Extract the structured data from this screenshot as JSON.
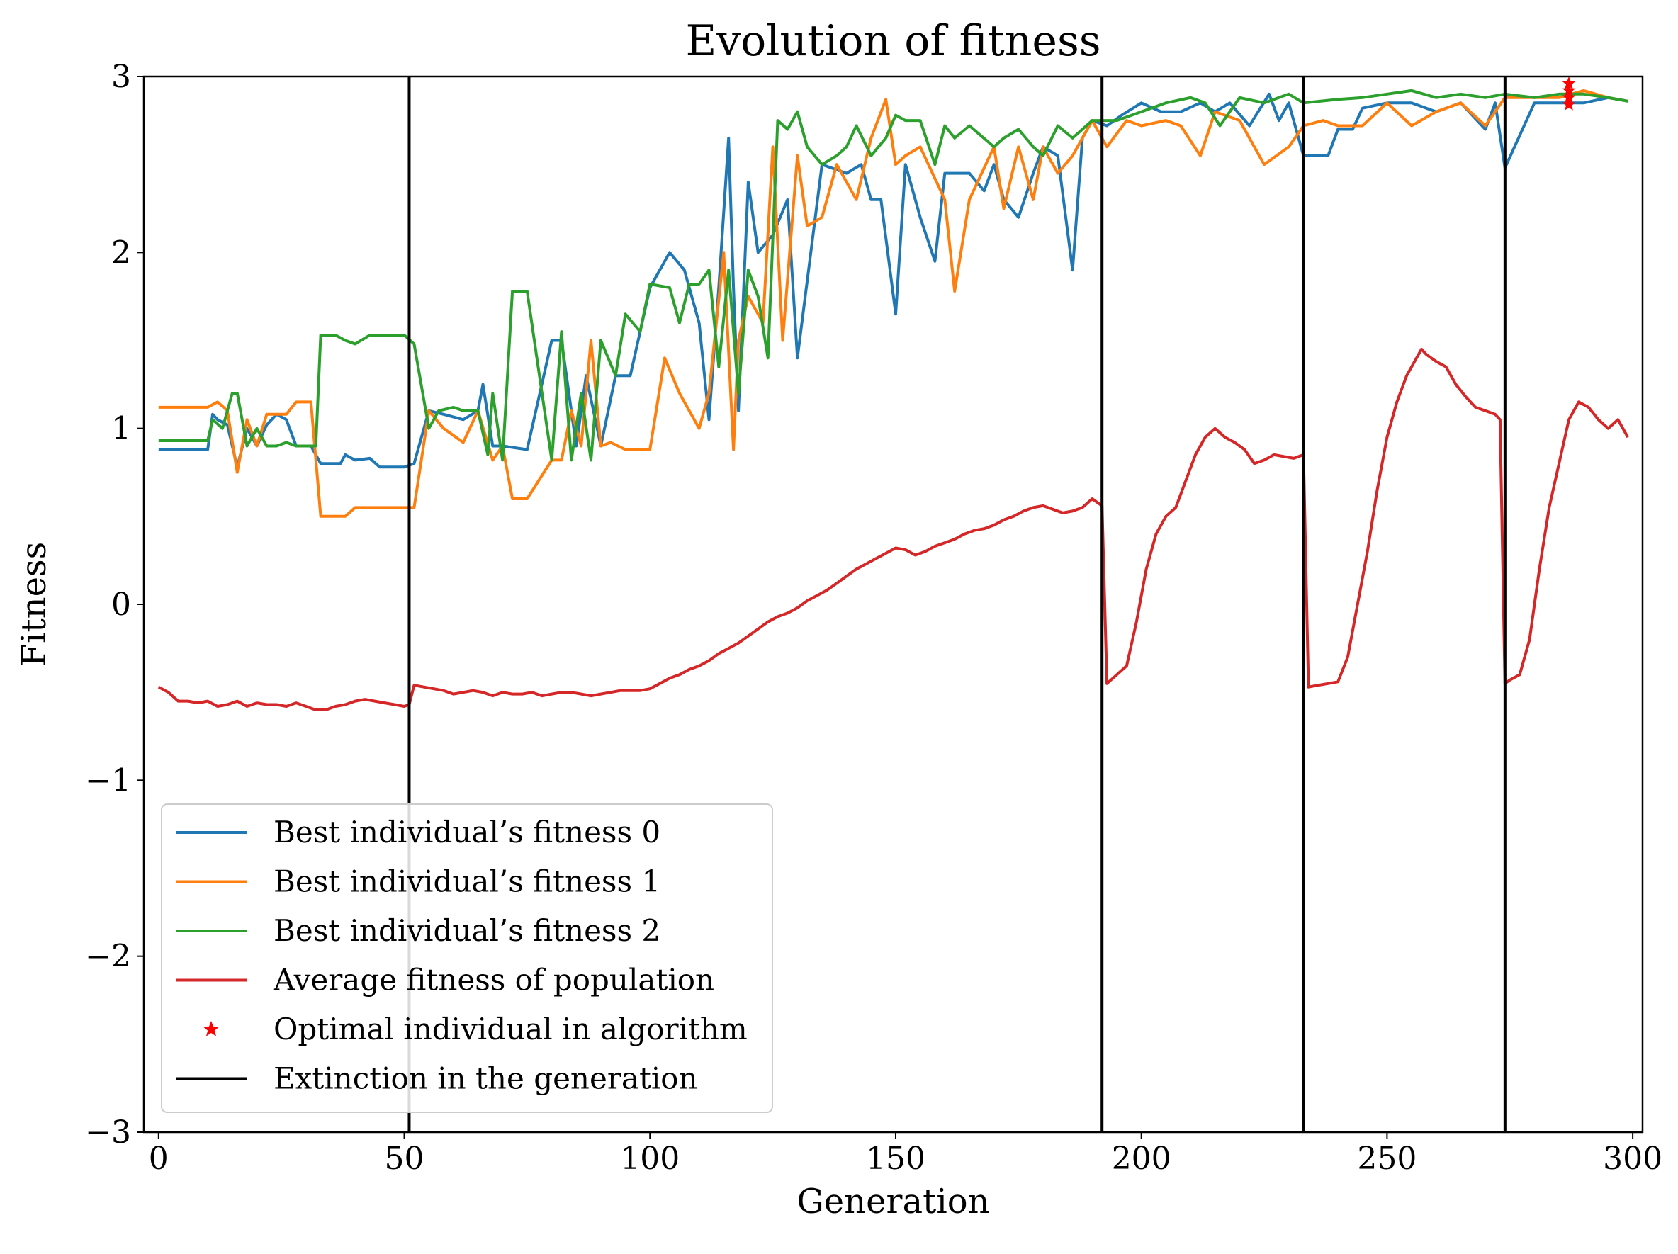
{
  "chart_data": {
    "type": "line",
    "title": "Evolution of fitness",
    "xlabel": "Generation",
    "ylabel": "Fitness",
    "xlim": [
      -3,
      302
    ],
    "ylim": [
      -3,
      3
    ],
    "xticks": [
      0,
      50,
      100,
      150,
      200,
      250,
      300
    ],
    "yticks": [
      -3,
      -2,
      -1,
      0,
      1,
      2,
      3
    ],
    "ytick_labels": [
      "−3",
      "−2",
      "−1",
      "0",
      "1",
      "2",
      "3"
    ],
    "grid": false,
    "legend_position": "lower-left",
    "extinction_generations": [
      51,
      192,
      233,
      274
    ],
    "series": [
      {
        "name": "Best individual’s fitness 0",
        "color": "#1f77b4",
        "x": [
          0,
          10,
          11,
          12,
          14,
          16,
          18,
          20,
          22,
          24,
          26,
          28,
          31,
          33,
          37,
          38,
          40,
          43,
          45,
          50,
          52,
          55,
          58,
          62,
          65,
          66,
          68,
          70,
          75,
          80,
          82,
          85,
          87,
          90,
          93,
          96,
          100,
          104,
          107,
          110,
          112,
          114,
          116,
          117,
          118,
          120,
          122,
          125,
          128,
          130,
          135,
          140,
          143,
          145,
          147,
          150,
          152,
          155,
          158,
          160,
          165,
          168,
          170,
          172,
          175,
          178,
          180,
          183,
          186,
          188,
          190,
          193,
          196,
          200,
          204,
          208,
          212,
          215,
          218,
          222,
          226,
          228,
          230,
          233,
          238,
          240,
          243,
          245,
          250,
          255,
          260,
          265,
          270,
          272,
          274,
          280,
          285,
          290,
          295,
          299
        ],
        "y": [
          0.88,
          0.88,
          1.08,
          1.05,
          1.02,
          0.78,
          1.0,
          0.9,
          1.02,
          1.08,
          1.05,
          0.9,
          0.9,
          0.8,
          0.8,
          0.85,
          0.82,
          0.83,
          0.78,
          0.78,
          0.8,
          1.1,
          1.08,
          1.05,
          1.1,
          1.25,
          0.9,
          0.9,
          0.88,
          1.5,
          1.5,
          0.9,
          1.3,
          0.9,
          1.3,
          1.3,
          1.8,
          2.0,
          1.9,
          1.6,
          1.05,
          1.8,
          2.65,
          1.8,
          1.1,
          2.4,
          2.0,
          2.1,
          2.3,
          1.4,
          2.5,
          2.45,
          2.5,
          2.3,
          2.3,
          1.65,
          2.5,
          2.2,
          1.95,
          2.45,
          2.45,
          2.35,
          2.5,
          2.3,
          2.2,
          2.45,
          2.6,
          2.55,
          1.9,
          2.65,
          2.75,
          2.72,
          2.78,
          2.85,
          2.8,
          2.8,
          2.85,
          2.8,
          2.85,
          2.72,
          2.9,
          2.75,
          2.85,
          2.55,
          2.55,
          2.7,
          2.7,
          2.82,
          2.85,
          2.85,
          2.8,
          2.85,
          2.7,
          2.85,
          2.48,
          2.85,
          2.85,
          2.85,
          2.88,
          2.86
        ]
      },
      {
        "name": "Best individual’s fitness 1",
        "color": "#ff7f0e",
        "x": [
          0,
          10,
          12,
          14,
          16,
          18,
          20,
          22,
          24,
          26,
          28,
          31,
          33,
          35,
          38,
          40,
          43,
          45,
          50,
          52,
          55,
          58,
          62,
          65,
          68,
          70,
          72,
          75,
          80,
          82,
          84,
          86,
          88,
          90,
          92,
          95,
          100,
          103,
          106,
          110,
          112,
          115,
          117,
          118,
          120,
          123,
          125,
          127,
          130,
          132,
          135,
          138,
          142,
          145,
          148,
          150,
          152,
          155,
          160,
          162,
          165,
          170,
          172,
          175,
          178,
          180,
          183,
          186,
          190,
          193,
          197,
          200,
          205,
          208,
          212,
          215,
          220,
          225,
          230,
          233,
          237,
          240,
          245,
          250,
          255,
          260,
          265,
          270,
          274,
          280,
          285,
          290,
          295,
          299
        ],
        "y": [
          1.12,
          1.12,
          1.15,
          1.1,
          0.75,
          1.05,
          0.9,
          1.08,
          1.08,
          1.08,
          1.15,
          1.15,
          0.5,
          0.5,
          0.5,
          0.55,
          0.55,
          0.55,
          0.55,
          0.55,
          1.1,
          1.0,
          0.92,
          1.1,
          0.82,
          0.9,
          0.6,
          0.6,
          0.82,
          0.82,
          1.1,
          0.9,
          1.5,
          0.9,
          0.92,
          0.88,
          0.88,
          1.4,
          1.2,
          1.0,
          1.2,
          2.0,
          0.88,
          1.5,
          1.75,
          1.6,
          2.6,
          1.5,
          2.55,
          2.15,
          2.2,
          2.5,
          2.3,
          2.65,
          2.87,
          2.5,
          2.55,
          2.6,
          2.3,
          1.78,
          2.3,
          2.6,
          2.25,
          2.6,
          2.3,
          2.6,
          2.45,
          2.55,
          2.75,
          2.6,
          2.75,
          2.72,
          2.75,
          2.72,
          2.55,
          2.8,
          2.75,
          2.5,
          2.6,
          2.72,
          2.75,
          2.72,
          2.72,
          2.85,
          2.72,
          2.8,
          2.85,
          2.72,
          2.88,
          2.88,
          2.88,
          2.92,
          2.88,
          2.86
        ]
      },
      {
        "name": "Best individual’s fitness 2",
        "color": "#2ca02c",
        "x": [
          0,
          10,
          11,
          13,
          15,
          16,
          17,
          18,
          20,
          22,
          24,
          26,
          28,
          32,
          33,
          36,
          38,
          40,
          43,
          45,
          50,
          52,
          55,
          57,
          60,
          62,
          65,
          67,
          68,
          70,
          72,
          75,
          80,
          82,
          84,
          86,
          88,
          90,
          93,
          95,
          98,
          100,
          104,
          106,
          108,
          110,
          112,
          114,
          116,
          118,
          120,
          122,
          124,
          126,
          128,
          130,
          132,
          135,
          138,
          140,
          142,
          145,
          148,
          150,
          152,
          155,
          158,
          160,
          162,
          165,
          170,
          172,
          175,
          178,
          180,
          183,
          186,
          190,
          195,
          200,
          205,
          210,
          213,
          216,
          220,
          225,
          230,
          233,
          240,
          245,
          250,
          255,
          260,
          265,
          270,
          274,
          280,
          285,
          290,
          295,
          299
        ],
        "y": [
          0.93,
          0.93,
          1.05,
          1.0,
          1.2,
          1.2,
          1.05,
          0.9,
          1.0,
          0.9,
          0.9,
          0.92,
          0.9,
          0.9,
          1.53,
          1.53,
          1.5,
          1.48,
          1.53,
          1.53,
          1.53,
          1.48,
          1.0,
          1.1,
          1.12,
          1.1,
          1.1,
          0.85,
          1.2,
          0.82,
          1.78,
          1.78,
          0.82,
          1.55,
          0.82,
          1.2,
          0.82,
          1.5,
          1.3,
          1.65,
          1.55,
          1.82,
          1.8,
          1.6,
          1.82,
          1.82,
          1.9,
          1.35,
          1.9,
          1.2,
          1.9,
          1.75,
          1.4,
          2.75,
          2.7,
          2.8,
          2.6,
          2.5,
          2.55,
          2.6,
          2.72,
          2.55,
          2.65,
          2.78,
          2.75,
          2.75,
          2.5,
          2.72,
          2.65,
          2.72,
          2.6,
          2.65,
          2.7,
          2.6,
          2.55,
          2.72,
          2.65,
          2.75,
          2.75,
          2.8,
          2.85,
          2.88,
          2.85,
          2.72,
          2.88,
          2.85,
          2.9,
          2.85,
          2.87,
          2.88,
          2.9,
          2.92,
          2.88,
          2.9,
          2.88,
          2.9,
          2.88,
          2.9,
          2.9,
          2.88,
          2.86
        ]
      },
      {
        "name": "Average fitness of population",
        "color": "#d62728",
        "x": [
          0,
          2,
          4,
          6,
          8,
          10,
          12,
          14,
          16,
          18,
          20,
          22,
          24,
          26,
          28,
          30,
          32,
          34,
          36,
          38,
          40,
          42,
          44,
          46,
          48,
          50,
          51,
          52,
          54,
          56,
          58,
          60,
          62,
          64,
          66,
          68,
          70,
          72,
          74,
          76,
          78,
          80,
          82,
          84,
          86,
          88,
          90,
          92,
          94,
          96,
          98,
          100,
          102,
          104,
          106,
          108,
          110,
          112,
          114,
          116,
          118,
          120,
          122,
          124,
          126,
          128,
          130,
          132,
          134,
          136,
          138,
          140,
          142,
          144,
          146,
          148,
          150,
          152,
          154,
          156,
          158,
          160,
          162,
          164,
          166,
          168,
          170,
          172,
          174,
          176,
          178,
          180,
          182,
          184,
          186,
          188,
          190,
          191,
          192,
          193,
          195,
          197,
          199,
          201,
          203,
          205,
          207,
          209,
          211,
          213,
          215,
          217,
          219,
          221,
          223,
          225,
          227,
          229,
          231,
          232,
          233,
          234,
          236,
          238,
          240,
          242,
          244,
          246,
          248,
          250,
          252,
          254,
          256,
          257,
          258,
          260,
          262,
          264,
          266,
          268,
          270,
          272,
          273,
          274,
          275,
          277,
          279,
          281,
          283,
          285,
          287,
          289,
          291,
          293,
          295,
          297,
          299
        ],
        "y": [
          -0.47,
          -0.5,
          -0.55,
          -0.55,
          -0.56,
          -0.55,
          -0.58,
          -0.57,
          -0.55,
          -0.58,
          -0.56,
          -0.57,
          -0.57,
          -0.58,
          -0.56,
          -0.58,
          -0.6,
          -0.6,
          -0.58,
          -0.57,
          -0.55,
          -0.54,
          -0.55,
          -0.56,
          -0.57,
          -0.58,
          -0.57,
          -0.46,
          -0.47,
          -0.48,
          -0.49,
          -0.51,
          -0.5,
          -0.49,
          -0.5,
          -0.52,
          -0.5,
          -0.51,
          -0.51,
          -0.5,
          -0.52,
          -0.51,
          -0.5,
          -0.5,
          -0.51,
          -0.52,
          -0.51,
          -0.5,
          -0.49,
          -0.49,
          -0.49,
          -0.48,
          -0.45,
          -0.42,
          -0.4,
          -0.37,
          -0.35,
          -0.32,
          -0.28,
          -0.25,
          -0.22,
          -0.18,
          -0.14,
          -0.1,
          -0.07,
          -0.05,
          -0.02,
          0.02,
          0.05,
          0.08,
          0.12,
          0.16,
          0.2,
          0.23,
          0.26,
          0.29,
          0.32,
          0.31,
          0.28,
          0.3,
          0.33,
          0.35,
          0.37,
          0.4,
          0.42,
          0.43,
          0.45,
          0.48,
          0.5,
          0.53,
          0.55,
          0.56,
          0.54,
          0.52,
          0.53,
          0.55,
          0.6,
          0.58,
          0.56,
          -0.45,
          -0.4,
          -0.35,
          -0.1,
          0.2,
          0.4,
          0.5,
          0.55,
          0.7,
          0.85,
          0.95,
          1.0,
          0.95,
          0.92,
          0.88,
          0.8,
          0.82,
          0.85,
          0.84,
          0.83,
          0.84,
          0.85,
          -0.47,
          -0.46,
          -0.45,
          -0.44,
          -0.3,
          0.0,
          0.3,
          0.65,
          0.95,
          1.15,
          1.3,
          1.4,
          1.45,
          1.42,
          1.38,
          1.35,
          1.25,
          1.18,
          1.12,
          1.1,
          1.08,
          1.05,
          -0.45,
          -0.43,
          -0.4,
          -0.2,
          0.2,
          0.55,
          0.8,
          1.05,
          1.15,
          1.12,
          1.05,
          1.0,
          1.05,
          0.95
        ]
      }
    ],
    "optimal_points": {
      "name": "Optimal individual in algorithm",
      "color": "#ff0000",
      "x": [
        287,
        287,
        287,
        287
      ],
      "y": [
        2.96,
        2.92,
        2.88,
        2.84
      ]
    },
    "extinction_legend": {
      "name": "Extinction in the generation",
      "color": "#000000"
    }
  }
}
